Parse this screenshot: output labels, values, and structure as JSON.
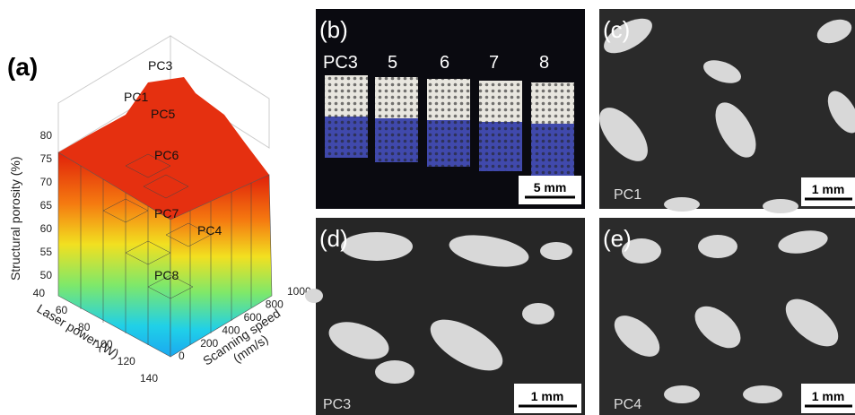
{
  "figure": {
    "a": {
      "label": "(a)",
      "z_axis": {
        "title": "Structural porosity (%)",
        "ticks": [
          50,
          55,
          60,
          65,
          70,
          75,
          80
        ]
      },
      "x_axis": {
        "title": "Laser power (W)",
        "ticks": [
          40,
          60,
          80,
          100,
          120,
          140
        ]
      },
      "y_axis": {
        "title_lines": [
          "Scanning speed",
          "(mm/s)"
        ],
        "ticks": [
          0,
          200,
          400,
          600,
          800,
          1000
        ]
      },
      "bar_labels": [
        "PC3",
        "PC1",
        "PC5",
        "PC6",
        "PC7",
        "PC4",
        "PC8"
      ]
    },
    "b": {
      "label": "(b)",
      "sample_labels": [
        "PC3",
        "5",
        "6",
        "7",
        "8"
      ],
      "scale_bar": "5 mm"
    },
    "c": {
      "label": "(c)",
      "sample": "PC1",
      "scale_bar": "1 mm"
    },
    "d": {
      "label": "(d)",
      "sample": "PC3",
      "scale_bar": "1 mm"
    },
    "e": {
      "label": "(e)",
      "sample": "PC4",
      "scale_bar": "1 mm"
    }
  }
}
